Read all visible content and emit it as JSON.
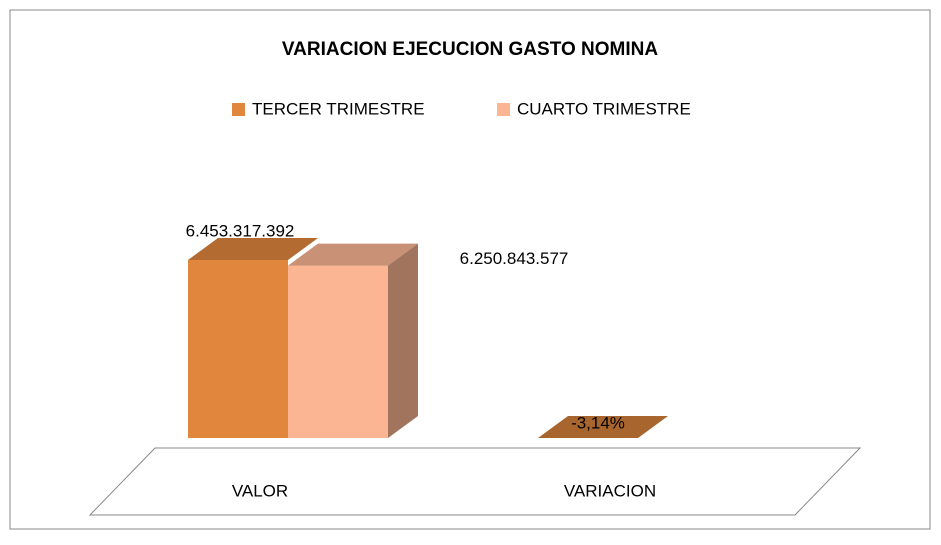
{
  "chart_data": {
    "type": "bar3d",
    "title": "VARIACION EJECUCION GASTO NOMINA",
    "categories": [
      "VALOR",
      "VARIACION"
    ],
    "series": [
      {
        "name": "TERCER TRIMESTRE",
        "color": "#e0863d",
        "values": [
          6453317392,
          -3.14
        ],
        "value_labels": [
          "6.453.317.392",
          "-3,14%"
        ]
      },
      {
        "name": "CUARTO TRIMESTRE",
        "color": "#fbb592",
        "values": [
          6250843577,
          null
        ],
        "value_labels": [
          "6.250.843.577",
          null
        ]
      }
    ]
  }
}
